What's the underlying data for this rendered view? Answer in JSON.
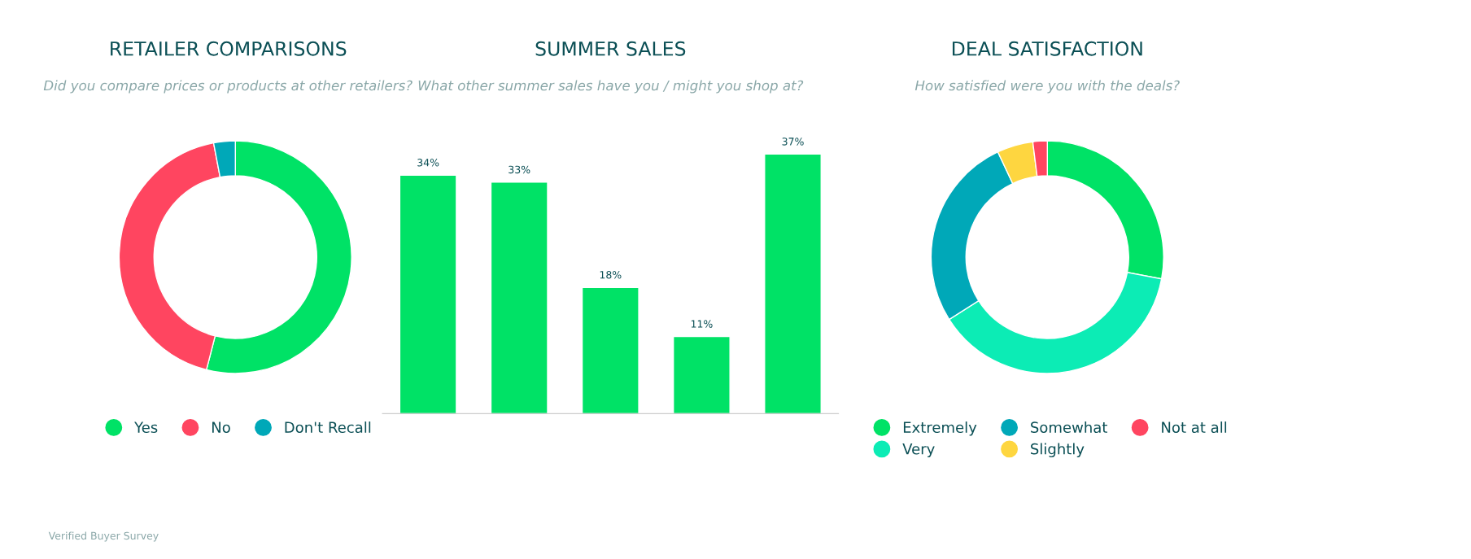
{
  "chart_data": [
    {
      "type": "donut",
      "title": "RETAILER COMPARISONS",
      "subtitle": "Did you compare prices or products at other retailers?",
      "categories": [
        "Yes",
        "No",
        "Don't Recall"
      ],
      "values": [
        54,
        43,
        3
      ],
      "colors": [
        "#00e266",
        "#ff4560",
        "#00a8b8"
      ],
      "legend": "bottom",
      "annotations": [
        "Verified Buyer Survey"
      ]
    },
    {
      "type": "bar",
      "title": "SUMMER SALES",
      "subtitle": "What other summer sales have you / might you shop at?",
      "categories": [
        null,
        null,
        null,
        null,
        null
      ],
      "values": [
        34,
        33,
        18,
        11,
        37
      ],
      "value_labels": [
        "34%",
        "33%",
        "18%",
        "11%",
        "37%"
      ],
      "color": "#00e266"
    },
    {
      "type": "donut",
      "title": "DEAL SATISFACTION",
      "subtitle": "How satisfied were you with the deals?",
      "categories": [
        "Extremely",
        "Very",
        "Somewhat",
        "Slightly",
        "Not at all"
      ],
      "values": [
        28,
        38,
        27,
        5,
        2
      ],
      "colors": [
        "#00e266",
        "#0cecb5",
        "#00a8b8",
        "#fed640",
        "#ff4560"
      ],
      "legend": "bottom"
    }
  ]
}
